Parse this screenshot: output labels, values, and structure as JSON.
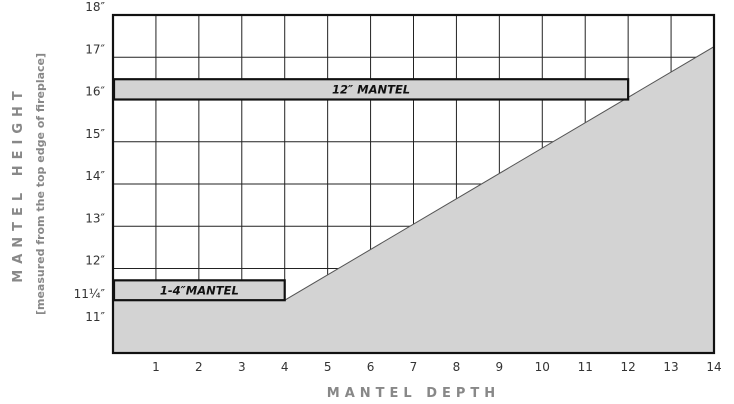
{
  "chart_data": {
    "type": "area",
    "xlabel": "MANTEL DEPTH",
    "ylabel": "MANTEL HEIGHT",
    "ylabel_sub": "[measured from the top edge of fireplace]",
    "xlim": [
      0,
      14
    ],
    "ylim": [
      10,
      18
    ],
    "x_ticks": [
      {
        "value": 1,
        "label": "1"
      },
      {
        "value": 2,
        "label": "2"
      },
      {
        "value": 3,
        "label": "3"
      },
      {
        "value": 4,
        "label": "4"
      },
      {
        "value": 5,
        "label": "5"
      },
      {
        "value": 6,
        "label": "6"
      },
      {
        "value": 7,
        "label": "7"
      },
      {
        "value": 8,
        "label": "8"
      },
      {
        "value": 9,
        "label": "9"
      },
      {
        "value": 10,
        "label": "10"
      },
      {
        "value": 11,
        "label": "11"
      },
      {
        "value": 12,
        "label": "12"
      },
      {
        "value": 13,
        "label": "13"
      },
      {
        "value": 14,
        "label": "14"
      }
    ],
    "y_ticks": [
      {
        "value": 11,
        "label": "11″"
      },
      {
        "value": 11.25,
        "label": "11¼″"
      },
      {
        "value": 12,
        "label": "12″"
      },
      {
        "value": 13,
        "label": "13″"
      },
      {
        "value": 14,
        "label": "14″"
      },
      {
        "value": 15,
        "label": "15″"
      },
      {
        "value": 16,
        "label": "16″"
      },
      {
        "value": 17,
        "label": "17″"
      },
      {
        "value": 18,
        "label": "18″"
      }
    ],
    "grid": true,
    "clearance_line": [
      {
        "x": 0,
        "y": 11.25
      },
      {
        "x": 4,
        "y": 11.25
      },
      {
        "x": 14,
        "y": 17.25
      }
    ],
    "mantels": [
      {
        "label": "1-4″MANTEL",
        "depth_start": 0,
        "depth_end": 4,
        "height_bottom": 11.25,
        "height_top": 11.72
      },
      {
        "label": "12″ MANTEL",
        "depth_start": 0,
        "depth_end": 12,
        "height_bottom": 16,
        "height_top": 16.48
      }
    ],
    "colors": {
      "shade": "#d3d3d3",
      "grid": "#222222",
      "axis_title": "#888888"
    }
  }
}
